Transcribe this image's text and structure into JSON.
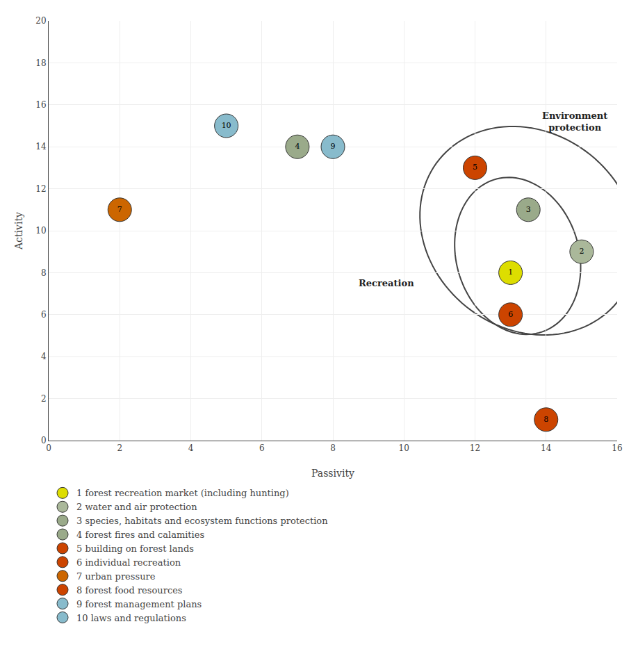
{
  "chart_data": {
    "type": "scatter",
    "xlabel": "Passivity",
    "ylabel": "Activity",
    "xlim": [
      0,
      16
    ],
    "ylim": [
      0,
      20
    ],
    "xticks": [
      0,
      2,
      4,
      6,
      8,
      10,
      12,
      14,
      16
    ],
    "yticks": [
      0,
      2,
      4,
      6,
      8,
      10,
      12,
      14,
      16,
      18,
      20
    ],
    "grid": true,
    "legend": "bottom",
    "series": [
      {
        "name": "1 forest recreation market (including hunting)",
        "text": "1",
        "color": "#dddd00",
        "x": [
          13
        ],
        "y": [
          8
        ]
      },
      {
        "name": "2 water and air protection",
        "text": "2",
        "color": "#aab89a",
        "x": [
          15
        ],
        "y": [
          9
        ]
      },
      {
        "name": "3 species, habitats and ecosystem functions protection",
        "text": "3",
        "color": "#9aaa8a",
        "x": [
          13.5
        ],
        "y": [
          11
        ]
      },
      {
        "name": "4 forest fires and calamities",
        "text": "4",
        "color": "#9aaa8a",
        "x": [
          7
        ],
        "y": [
          14
        ]
      },
      {
        "name": "5 building on forest lands",
        "text": "5",
        "color": "#cc4400",
        "x": [
          12
        ],
        "y": [
          13
        ]
      },
      {
        "name": "6 individual recreation",
        "text": "6",
        "color": "#cc4400",
        "x": [
          13
        ],
        "y": [
          6
        ]
      },
      {
        "name": "7 urban pressure",
        "text": "7",
        "color": "#cc6600",
        "x": [
          2
        ],
        "y": [
          11
        ]
      },
      {
        "name": "8 forest food resources",
        "text": "8",
        "color": "#cc4400",
        "x": [
          14
        ],
        "y": [
          1
        ]
      },
      {
        "name": "9 forest management plans",
        "text": "9",
        "color": "#88bbcc",
        "x": [
          8
        ],
        "y": [
          14
        ]
      },
      {
        "name": "10 laws and regulations",
        "text": "10",
        "color": "#88bbcc",
        "x": [
          5
        ],
        "y": [
          15
        ]
      }
    ],
    "ellipses": [
      {
        "cx": 13.5,
        "cy": 10.0,
        "width": 6.0,
        "height": 10.0,
        "angle": 8
      },
      {
        "cx": 13.2,
        "cy": 8.8,
        "width": 3.5,
        "height": 7.5,
        "angle": 5
      }
    ],
    "annotations": [
      {
        "text": "Environment\nprotection",
        "x": 14.8,
        "y": 15.2
      },
      {
        "text": "Recreation",
        "x": 9.5,
        "y": 7.5
      }
    ]
  }
}
